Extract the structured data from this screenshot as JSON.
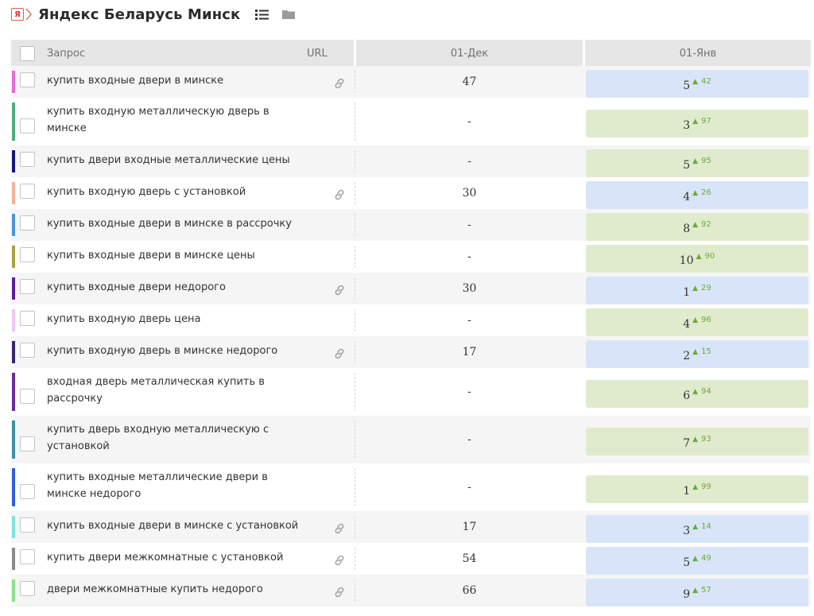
{
  "header": {
    "engine_badge": "Я",
    "title": "Яндекс Беларусь Минск"
  },
  "columns": {
    "query": "Запрос",
    "url": "URL",
    "date1": "01-Дек",
    "date2": "01-Янв"
  },
  "rows": [
    {
      "query": "купить входные двери в минске",
      "color": "#e86ad5",
      "has_link": true,
      "dec": "47",
      "jan": "5",
      "delta": "42",
      "cell": "blue"
    },
    {
      "query": "купить входную металлическую дверь в минске",
      "color": "#4cae7d",
      "has_link": false,
      "dec": "-",
      "jan": "3",
      "delta": "97",
      "cell": "green"
    },
    {
      "query": "купить двери входные металлические цены",
      "color": "#14167a",
      "has_link": false,
      "dec": "-",
      "jan": "5",
      "delta": "95",
      "cell": "green"
    },
    {
      "query": "купить входную дверь с установкой",
      "color": "#f2b49a",
      "has_link": true,
      "dec": "30",
      "jan": "4",
      "delta": "26",
      "cell": "blue"
    },
    {
      "query": "купить входные двери в минске в рассрочку",
      "color": "#4a95d6",
      "has_link": false,
      "dec": "-",
      "jan": "8",
      "delta": "92",
      "cell": "green"
    },
    {
      "query": "купить входные двери в минске цены",
      "color": "#a6a23c",
      "has_link": false,
      "dec": "-",
      "jan": "10",
      "delta": "90",
      "cell": "green"
    },
    {
      "query": "купить входные двери недорого",
      "color": "#5c1e9b",
      "has_link": true,
      "dec": "30",
      "jan": "1",
      "delta": "29",
      "cell": "blue"
    },
    {
      "query": "купить входную дверь цена",
      "color": "#f0c6f2",
      "has_link": false,
      "dec": "-",
      "jan": "4",
      "delta": "96",
      "cell": "green"
    },
    {
      "query": "купить входную дверь в минске недорого",
      "color": "#3b2470",
      "has_link": true,
      "dec": "17",
      "jan": "2",
      "delta": "15",
      "cell": "blue"
    },
    {
      "query": "входная дверь металлическая купить в рассрочку",
      "color": "#6a2a98",
      "has_link": false,
      "dec": "-",
      "jan": "6",
      "delta": "94",
      "cell": "green"
    },
    {
      "query": "купить дверь входную металлическую с установкой",
      "color": "#3e8fa8",
      "has_link": false,
      "dec": "-",
      "jan": "7",
      "delta": "93",
      "cell": "green"
    },
    {
      "query": "купить входные металлические двери в минске недорого",
      "color": "#2d5fd6",
      "has_link": false,
      "dec": "-",
      "jan": "1",
      "delta": "99",
      "cell": "green"
    },
    {
      "query": "купить входные двери в минске с установкой",
      "color": "#7ee3e0",
      "has_link": true,
      "dec": "17",
      "jan": "3",
      "delta": "14",
      "cell": "blue"
    },
    {
      "query": "купить двери межкомнатные с установкой",
      "color": "#8b8b8b",
      "has_link": true,
      "dec": "54",
      "jan": "5",
      "delta": "49",
      "cell": "blue"
    },
    {
      "query": "двери межкомнатные купить недорого",
      "color": "#8be38a",
      "has_link": true,
      "dec": "66",
      "jan": "9",
      "delta": "57",
      "cell": "blue"
    }
  ],
  "icons": {
    "row_link": "link-icon",
    "view_list": "list-icon",
    "folder": "folder-icon",
    "rank_up": "triangle-up-icon"
  }
}
